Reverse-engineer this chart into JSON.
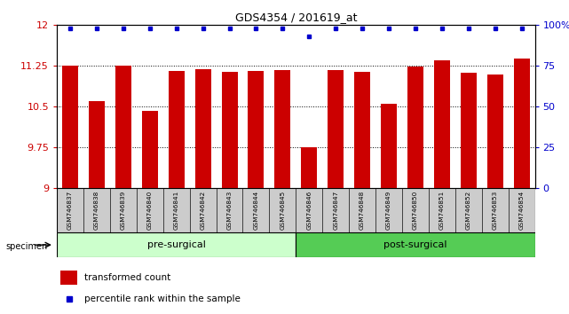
{
  "title": "GDS4354 / 201619_at",
  "samples": [
    "GSM746837",
    "GSM746838",
    "GSM746839",
    "GSM746840",
    "GSM746841",
    "GSM746842",
    "GSM746843",
    "GSM746844",
    "GSM746845",
    "GSM746846",
    "GSM746847",
    "GSM746848",
    "GSM746849",
    "GSM746850",
    "GSM746851",
    "GSM746852",
    "GSM746853",
    "GSM746854"
  ],
  "bar_values": [
    11.25,
    10.6,
    11.25,
    10.43,
    11.15,
    11.19,
    11.14,
    11.15,
    11.18,
    9.75,
    11.17,
    11.14,
    10.55,
    11.24,
    11.35,
    11.13,
    11.1,
    11.38
  ],
  "percentile_values": [
    98,
    98,
    98,
    98,
    98,
    98,
    98,
    98,
    98,
    93,
    98,
    98,
    98,
    98,
    98,
    98,
    98,
    98
  ],
  "pre_surgical_count": 9,
  "post_surgical_count": 9,
  "y_min": 9,
  "y_max": 12,
  "y_ticks": [
    9,
    9.75,
    10.5,
    11.25,
    12
  ],
  "y_tick_labels": [
    "9",
    "9.75",
    "10.5",
    "11.25",
    "12"
  ],
  "right_y_ticks": [
    0,
    25,
    50,
    75,
    100
  ],
  "right_y_tick_labels": [
    "0",
    "25",
    "50",
    "75",
    "100%"
  ],
  "bar_color": "#cc0000",
  "dot_color": "#0000cc",
  "pre_surgical_color": "#ccffcc",
  "post_surgical_color": "#55cc55",
  "bg_color": "#cccccc",
  "bar_width": 0.6,
  "legend_dot_label": "percentile rank within the sample",
  "legend_bar_label": "transformed count"
}
